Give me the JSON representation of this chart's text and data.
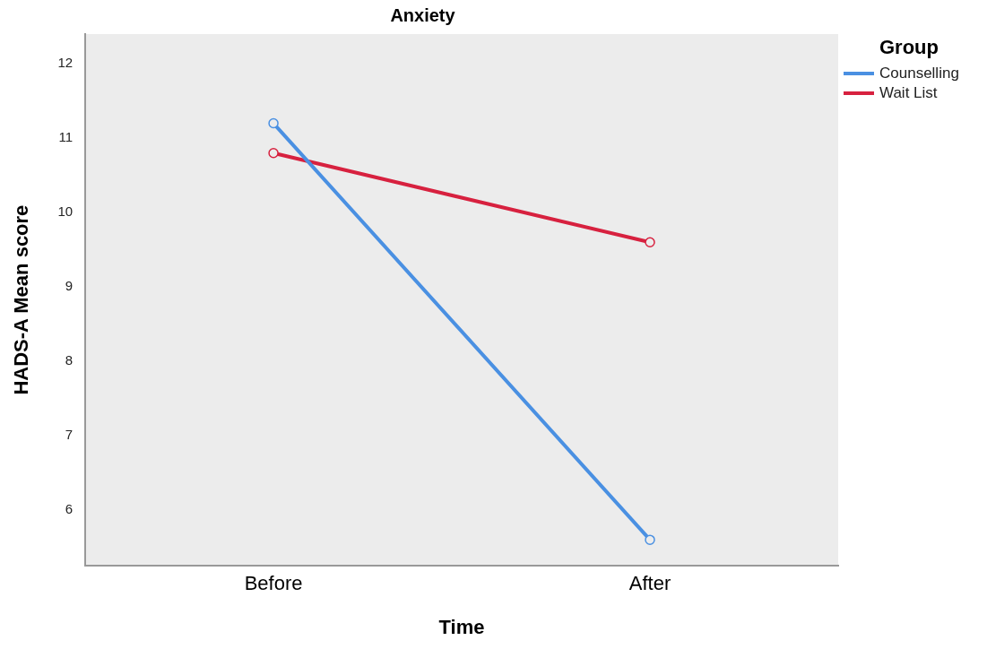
{
  "chart_data": {
    "type": "line",
    "title": "Anxiety",
    "xlabel": "Time",
    "ylabel": "HADS-A Mean score",
    "legend_title": "Group",
    "categories": [
      "Before",
      "After"
    ],
    "series": [
      {
        "name": "Counselling",
        "color": "#4a90e2",
        "values": [
          11.2,
          5.6
        ]
      },
      {
        "name": "Wait List",
        "color": "#d7213f",
        "values": [
          10.8,
          9.6
        ]
      }
    ],
    "ylim": [
      5.25,
      12.4
    ],
    "yticks": [
      6,
      7,
      8,
      9,
      10,
      11,
      12
    ],
    "grid": false,
    "legend": "top right",
    "marker": "circle",
    "line_style": "solid"
  }
}
